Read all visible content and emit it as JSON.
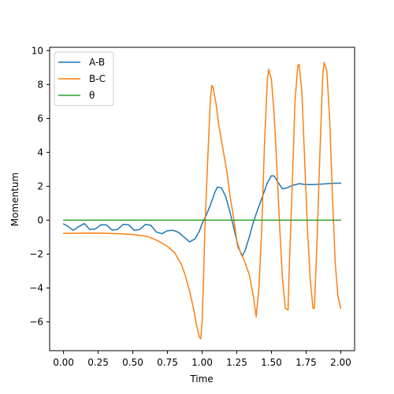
{
  "chart_data": {
    "type": "line",
    "title": "",
    "xlabel": "Time",
    "ylabel": "Momentum",
    "xlim": [
      -0.1,
      2.1
    ],
    "ylim": [
      -7.7,
      10.2
    ],
    "xticks": [
      0.0,
      0.25,
      0.5,
      0.75,
      1.0,
      1.25,
      1.5,
      1.75,
      2.0
    ],
    "xtick_labels": [
      "0.00",
      "0.25",
      "0.50",
      "0.75",
      "1.00",
      "1.25",
      "1.50",
      "1.75",
      "2.00"
    ],
    "yticks": [
      -6,
      -4,
      -2,
      0,
      2,
      4,
      6,
      8,
      10
    ],
    "ytick_labels": [
      "−6",
      "−4",
      "−2",
      "0",
      "2",
      "4",
      "6",
      "8",
      "10"
    ],
    "grid": false,
    "legend_position": "upper-left",
    "series": [
      {
        "name": "A-B",
        "color": "#1f77b4",
        "x": [
          0.0,
          0.03,
          0.07,
          0.11,
          0.15,
          0.19,
          0.23,
          0.27,
          0.31,
          0.35,
          0.39,
          0.43,
          0.47,
          0.51,
          0.55,
          0.59,
          0.63,
          0.67,
          0.71,
          0.75,
          0.79,
          0.83,
          0.87,
          0.91,
          0.95,
          0.98,
          1.0,
          1.03,
          1.06,
          1.09,
          1.11,
          1.14,
          1.17,
          1.2,
          1.23,
          1.26,
          1.29,
          1.31,
          1.34,
          1.37,
          1.4,
          1.44,
          1.47,
          1.5,
          1.52,
          1.55,
          1.58,
          1.61,
          1.65,
          1.7,
          1.75,
          1.8,
          1.85,
          1.9,
          1.95,
          2.0
        ],
        "y": [
          -0.22,
          -0.35,
          -0.6,
          -0.38,
          -0.2,
          -0.55,
          -0.52,
          -0.27,
          -0.28,
          -0.58,
          -0.55,
          -0.25,
          -0.27,
          -0.6,
          -0.55,
          -0.25,
          -0.3,
          -0.7,
          -0.8,
          -0.62,
          -0.6,
          -0.72,
          -1.0,
          -1.28,
          -1.1,
          -0.65,
          -0.2,
          0.3,
          0.9,
          1.6,
          1.95,
          1.9,
          1.4,
          0.5,
          -0.5,
          -1.6,
          -2.1,
          -1.8,
          -1.0,
          -0.1,
          0.6,
          1.5,
          2.2,
          2.62,
          2.6,
          2.2,
          1.85,
          1.9,
          2.05,
          2.15,
          2.1,
          2.1,
          2.12,
          2.15,
          2.18,
          2.18
        ]
      },
      {
        "name": "B-C",
        "color": "#ff7f0e",
        "x": [
          0.0,
          0.1,
          0.2,
          0.3,
          0.4,
          0.5,
          0.6,
          0.65,
          0.7,
          0.75,
          0.8,
          0.85,
          0.88,
          0.91,
          0.94,
          0.96,
          0.98,
          0.99,
          1.0,
          1.01,
          1.02,
          1.04,
          1.06,
          1.07,
          1.08,
          1.1,
          1.12,
          1.15,
          1.18,
          1.2,
          1.23,
          1.25,
          1.28,
          1.3,
          1.34,
          1.37,
          1.39,
          1.41,
          1.43,
          1.45,
          1.47,
          1.48,
          1.5,
          1.52,
          1.54,
          1.56,
          1.58,
          1.6,
          1.62,
          1.63,
          1.65,
          1.67,
          1.69,
          1.7,
          1.72,
          1.74,
          1.76,
          1.78,
          1.8,
          1.81,
          1.83,
          1.85,
          1.87,
          1.88,
          1.9,
          1.92,
          1.94,
          1.96,
          1.98,
          2.0
        ],
        "y": [
          -0.78,
          -0.77,
          -0.76,
          -0.77,
          -0.8,
          -0.85,
          -0.95,
          -1.1,
          -1.3,
          -1.55,
          -1.9,
          -2.6,
          -3.3,
          -4.2,
          -5.3,
          -6.2,
          -6.9,
          -7.0,
          -6.0,
          -3.5,
          -0.5,
          3.5,
          7.2,
          7.95,
          7.8,
          6.9,
          5.6,
          4.2,
          2.8,
          1.5,
          0.0,
          -1.2,
          -2.0,
          -2.3,
          -3.2,
          -4.5,
          -5.7,
          -4.0,
          -0.5,
          4.5,
          8.2,
          8.9,
          8.3,
          6.2,
          3.0,
          -0.5,
          -3.5,
          -5.2,
          -5.3,
          -2.5,
          2.0,
          7.0,
          9.1,
          9.2,
          7.5,
          3.5,
          -0.5,
          -3.5,
          -5.2,
          -5.2,
          -1.0,
          4.0,
          8.5,
          9.3,
          8.8,
          6.0,
          1.5,
          -2.5,
          -4.5,
          -5.2
        ]
      },
      {
        "name": "θ",
        "color": "#2ca02c",
        "x": [
          0.0,
          2.0
        ],
        "y": [
          0.0,
          0.0
        ]
      }
    ]
  }
}
